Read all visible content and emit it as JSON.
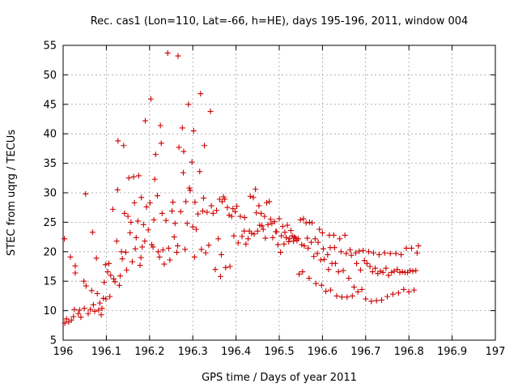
{
  "chart_data": {
    "type": "scatter",
    "title": "Rec. cas1 (Lon=110, Lat=-66, h=HE), days 195-196, 2011, window 004",
    "xlabel": "GPS time / Days of year 2011",
    "ylabel": "STEC from uqrg / TECUs",
    "xlim": [
      196,
      197
    ],
    "ylim": [
      5,
      55
    ],
    "grid": true,
    "marker": "+",
    "color": "#cc0000",
    "x_ticks": [
      196,
      196.1,
      196.2,
      196.3,
      196.4,
      196.5,
      196.6,
      196.7,
      196.8,
      196.9,
      197
    ],
    "x_tick_labels": [
      "196",
      "196.1",
      "196.2",
      "196.3",
      "196.4",
      "196.5",
      "196.6",
      "196.7",
      "196.8",
      "196.9",
      "197"
    ],
    "y_ticks": [
      5,
      10,
      15,
      20,
      25,
      30,
      35,
      40,
      45,
      50,
      55
    ],
    "y_tick_labels": [
      "5",
      "10",
      "15",
      "20",
      "25",
      "30",
      "35",
      "40",
      "45",
      "50",
      "55"
    ],
    "series": [
      {
        "name": "STEC",
        "points": [
          [
            196.003,
            22.2
          ],
          [
            196.004,
            7.9
          ],
          [
            196.008,
            8.6
          ],
          [
            196.013,
            8.1
          ],
          [
            196.017,
            19.1
          ],
          [
            196.019,
            8.4
          ],
          [
            196.024,
            9.0
          ],
          [
            196.026,
            10.2
          ],
          [
            196.028,
            17.6
          ],
          [
            196.028,
            16.4
          ],
          [
            196.035,
            9.5
          ],
          [
            196.038,
            10.1
          ],
          [
            196.041,
            8.9
          ],
          [
            196.048,
            15.0
          ],
          [
            196.049,
            10.4
          ],
          [
            196.052,
            29.8
          ],
          [
            196.053,
            14.2
          ],
          [
            196.058,
            9.5
          ],
          [
            196.063,
            10.2
          ],
          [
            196.066,
            13.4
          ],
          [
            196.068,
            23.3
          ],
          [
            196.07,
            11.0
          ],
          [
            196.073,
            9.9
          ],
          [
            196.077,
            18.9
          ],
          [
            196.079,
            12.9
          ],
          [
            196.082,
            10.1
          ],
          [
            196.085,
            11.3
          ],
          [
            196.088,
            9.3
          ],
          [
            196.09,
            10.4
          ],
          [
            196.093,
            12.1
          ],
          [
            196.095,
            14.8
          ],
          [
            196.098,
            17.8
          ],
          [
            196.099,
            12.0
          ],
          [
            196.103,
            16.6
          ],
          [
            196.106,
            18.0
          ],
          [
            196.108,
            12.4
          ],
          [
            196.11,
            16.0
          ],
          [
            196.115,
            27.2
          ],
          [
            196.117,
            15.4
          ],
          [
            196.12,
            14.9
          ],
          [
            196.124,
            21.8
          ],
          [
            196.126,
            30.5
          ],
          [
            196.127,
            38.8
          ],
          [
            196.13,
            14.3
          ],
          [
            196.132,
            15.9
          ],
          [
            196.135,
            20.0
          ],
          [
            196.137,
            18.8
          ],
          [
            196.14,
            38.0
          ],
          [
            196.142,
            26.5
          ],
          [
            196.145,
            19.9
          ],
          [
            196.147,
            16.9
          ],
          [
            196.15,
            26.0
          ],
          [
            196.152,
            32.5
          ],
          [
            196.155,
            23.2
          ],
          [
            196.157,
            25.0
          ],
          [
            196.16,
            18.3
          ],
          [
            196.163,
            32.7
          ],
          [
            196.165,
            28.3
          ],
          [
            196.167,
            20.5
          ],
          [
            196.169,
            22.4
          ],
          [
            196.173,
            25.2
          ],
          [
            196.175,
            32.9
          ],
          [
            196.178,
            17.7
          ],
          [
            196.18,
            19.0
          ],
          [
            196.181,
            29.2
          ],
          [
            196.183,
            20.8
          ],
          [
            196.186,
            24.6
          ],
          [
            196.189,
            21.8
          ],
          [
            196.19,
            42.2
          ],
          [
            196.193,
            27.6
          ],
          [
            196.197,
            23.7
          ],
          [
            196.201,
            28.3
          ],
          [
            196.203,
            45.9
          ],
          [
            196.205,
            21.2
          ],
          [
            196.208,
            20.8
          ],
          [
            196.21,
            25.4
          ],
          [
            196.212,
            32.3
          ],
          [
            196.214,
            36.5
          ],
          [
            196.218,
            29.5
          ],
          [
            196.22,
            20.0
          ],
          [
            196.223,
            19.1
          ],
          [
            196.225,
            41.4
          ],
          [
            196.227,
            38.4
          ],
          [
            196.229,
            26.5
          ],
          [
            196.231,
            20.3
          ],
          [
            196.234,
            17.9
          ],
          [
            196.238,
            25.3
          ],
          [
            196.242,
            53.7
          ],
          [
            196.244,
            20.6
          ],
          [
            196.247,
            18.6
          ],
          [
            196.252,
            26.9
          ],
          [
            196.254,
            28.4
          ],
          [
            196.257,
            22.5
          ],
          [
            196.259,
            24.8
          ],
          [
            196.263,
            19.9
          ],
          [
            196.265,
            21.0
          ],
          [
            196.266,
            53.2
          ],
          [
            196.268,
            37.7
          ],
          [
            196.272,
            26.8
          ],
          [
            196.276,
            41.0
          ],
          [
            196.278,
            33.4
          ],
          [
            196.279,
            37.0
          ],
          [
            196.282,
            20.4
          ],
          [
            196.284,
            28.5
          ],
          [
            196.287,
            24.8
          ],
          [
            196.29,
            45.0
          ],
          [
            196.292,
            30.8
          ],
          [
            196.294,
            30.4
          ],
          [
            196.298,
            35.2
          ],
          [
            196.3,
            24.2
          ],
          [
            196.302,
            40.5
          ],
          [
            196.304,
            19.1
          ],
          [
            196.305,
            28.4
          ],
          [
            196.308,
            23.8
          ],
          [
            196.312,
            26.4
          ],
          [
            196.316,
            33.6
          ],
          [
            196.318,
            46.8
          ],
          [
            196.32,
            20.4
          ],
          [
            196.323,
            26.9
          ],
          [
            196.325,
            29.1
          ],
          [
            196.327,
            38.0
          ],
          [
            196.33,
            19.8
          ],
          [
            196.333,
            26.7
          ],
          [
            196.337,
            21.1
          ],
          [
            196.341,
            43.8
          ],
          [
            196.343,
            27.8
          ],
          [
            196.347,
            26.5
          ],
          [
            196.352,
            17.0
          ],
          [
            196.355,
            27.0
          ],
          [
            196.359,
            22.2
          ],
          [
            196.362,
            28.9
          ],
          [
            196.364,
            15.8
          ],
          [
            196.366,
            19.5
          ],
          [
            196.368,
            28.5
          ],
          [
            196.371,
            29.3
          ],
          [
            196.374,
            28.9
          ],
          [
            196.376,
            17.3
          ],
          [
            196.38,
            27.5
          ],
          [
            196.384,
            26.2
          ],
          [
            196.386,
            17.5
          ],
          [
            196.39,
            26.0
          ],
          [
            196.393,
            27.3
          ],
          [
            196.395,
            22.7
          ],
          [
            196.398,
            26.8
          ],
          [
            196.402,
            27.7
          ],
          [
            196.405,
            21.5
          ],
          [
            196.41,
            26.0
          ],
          [
            196.414,
            22.6
          ],
          [
            196.419,
            23.5
          ],
          [
            196.42,
            25.8
          ],
          [
            196.423,
            21.3
          ],
          [
            196.428,
            22.2
          ],
          [
            196.431,
            23.5
          ],
          [
            196.433,
            29.4
          ],
          [
            196.436,
            23.1
          ],
          [
            196.44,
            29.2
          ],
          [
            196.442,
            23.0
          ],
          [
            196.445,
            30.6
          ],
          [
            196.447,
            26.6
          ],
          [
            196.45,
            23.5
          ],
          [
            196.453,
            27.8
          ],
          [
            196.455,
            24.5
          ],
          [
            196.458,
            26.5
          ],
          [
            196.46,
            24.4
          ],
          [
            196.463,
            23.8
          ],
          [
            196.466,
            26.0
          ],
          [
            196.468,
            22.3
          ],
          [
            196.471,
            28.3
          ],
          [
            196.474,
            24.6
          ],
          [
            196.477,
            28.5
          ],
          [
            196.48,
            25.5
          ],
          [
            196.483,
            24.8
          ],
          [
            196.485,
            22.4
          ],
          [
            196.489,
            25.1
          ],
          [
            196.492,
            23.4
          ],
          [
            196.494,
            23.4
          ],
          [
            196.497,
            21.2
          ],
          [
            196.5,
            25.6
          ],
          [
            196.503,
            19.9
          ],
          [
            196.505,
            22.7
          ],
          [
            196.508,
            24.3
          ],
          [
            196.511,
            21.3
          ],
          [
            196.513,
            23.3
          ],
          [
            196.516,
            22.4
          ],
          [
            196.519,
            24.5
          ],
          [
            196.522,
            21.7
          ],
          [
            196.524,
            22.2
          ],
          [
            196.527,
            23.6
          ],
          [
            196.53,
            22.7
          ],
          [
            196.533,
            21.8
          ],
          [
            196.535,
            22.5
          ],
          [
            196.538,
            22.3
          ],
          [
            196.541,
            21.9
          ],
          [
            196.544,
            22.2
          ],
          [
            196.546,
            16.2
          ],
          [
            196.549,
            25.4
          ],
          [
            196.552,
            21.2
          ],
          [
            196.554,
            16.6
          ],
          [
            196.556,
            25.6
          ],
          [
            196.558,
            21.0
          ],
          [
            196.562,
            24.9
          ],
          [
            196.565,
            22.3
          ],
          [
            196.567,
            20.6
          ],
          [
            196.569,
            15.5
          ],
          [
            196.57,
            25.0
          ],
          [
            196.574,
            21.6
          ],
          [
            196.576,
            24.9
          ],
          [
            196.58,
            19.2
          ],
          [
            196.583,
            22.2
          ],
          [
            196.585,
            14.6
          ],
          [
            196.588,
            19.7
          ],
          [
            196.59,
            21.6
          ],
          [
            196.593,
            23.8
          ],
          [
            196.596,
            18.6
          ],
          [
            196.598,
            14.3
          ],
          [
            196.6,
            23.2
          ],
          [
            196.602,
            20.5
          ],
          [
            196.604,
            18.7
          ],
          [
            196.608,
            13.3
          ],
          [
            196.612,
            19.5
          ],
          [
            196.614,
            17.0
          ],
          [
            196.616,
            22.8
          ],
          [
            196.618,
            20.7
          ],
          [
            196.619,
            13.5
          ],
          [
            196.622,
            18.0
          ],
          [
            196.626,
            22.8
          ],
          [
            196.628,
            20.7
          ],
          [
            196.63,
            18.0
          ],
          [
            196.633,
            12.5
          ],
          [
            196.637,
            16.6
          ],
          [
            196.64,
            22.2
          ],
          [
            196.643,
            20.0
          ],
          [
            196.645,
            12.3
          ],
          [
            196.648,
            16.8
          ],
          [
            196.652,
            22.8
          ],
          [
            196.655,
            19.7
          ],
          [
            196.657,
            12.3
          ],
          [
            196.661,
            15.5
          ],
          [
            196.664,
            20.3
          ],
          [
            196.667,
            19.4
          ],
          [
            196.669,
            12.5
          ],
          [
            196.673,
            14.0
          ],
          [
            196.677,
            19.8
          ],
          [
            196.679,
            18.0
          ],
          [
            196.682,
            13.2
          ],
          [
            196.685,
            20.1
          ],
          [
            196.688,
            16.9
          ],
          [
            196.691,
            13.6
          ],
          [
            196.694,
            20.2
          ],
          [
            196.697,
            18.5
          ],
          [
            196.7,
            12.0
          ],
          [
            196.703,
            18.0
          ],
          [
            196.707,
            20.0
          ],
          [
            196.71,
            17.5
          ],
          [
            196.713,
            11.6
          ],
          [
            196.716,
            16.6
          ],
          [
            196.718,
            19.8
          ],
          [
            196.722,
            17.2
          ],
          [
            196.725,
            11.7
          ],
          [
            196.728,
            16.3
          ],
          [
            196.731,
            19.5
          ],
          [
            196.734,
            16.7
          ],
          [
            196.737,
            11.8
          ],
          [
            196.74,
            16.5
          ],
          [
            196.744,
            19.8
          ],
          [
            196.747,
            17.2
          ],
          [
            196.75,
            12.4
          ],
          [
            196.753,
            16.0
          ],
          [
            196.757,
            19.7
          ],
          [
            196.76,
            16.5
          ],
          [
            196.763,
            12.8
          ],
          [
            196.766,
            16.7
          ],
          [
            196.77,
            19.7
          ],
          [
            196.773,
            17.0
          ],
          [
            196.776,
            13.0
          ],
          [
            196.779,
            16.5
          ],
          [
            196.782,
            19.5
          ],
          [
            196.785,
            16.6
          ],
          [
            196.788,
            13.6
          ],
          [
            196.791,
            16.5
          ],
          [
            196.794,
            20.6
          ],
          [
            196.797,
            16.5
          ],
          [
            196.8,
            13.2
          ],
          [
            196.803,
            16.8
          ],
          [
            196.806,
            20.6
          ],
          [
            196.809,
            16.7
          ],
          [
            196.812,
            13.5
          ],
          [
            196.816,
            16.8
          ],
          [
            196.819,
            19.8
          ],
          [
            196.822,
            21.0
          ]
        ]
      }
    ]
  }
}
